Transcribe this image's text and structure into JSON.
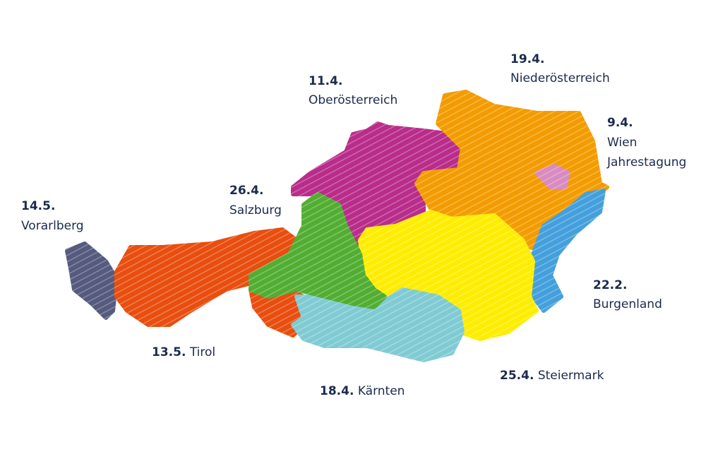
{
  "regions": [
    {
      "date": "14.5.",
      "name": "Vorarlberg"
    },
    {
      "date": "13.5.",
      "name": "Tirol"
    },
    {
      "date": "26.4.",
      "name": "Salzburg"
    },
    {
      "date": "11.4.",
      "name": "Oberösterreich"
    },
    {
      "date": "19.4.",
      "name": "Niederösterreich"
    },
    {
      "date": "9.4.",
      "name": "Wien",
      "note": "Jahrestagung"
    },
    {
      "date": "22.2.",
      "name": "Burgenland"
    },
    {
      "date": "25.4.",
      "name": "Steiermark"
    },
    {
      "date": "18.4.",
      "name": "Kärnten"
    }
  ]
}
